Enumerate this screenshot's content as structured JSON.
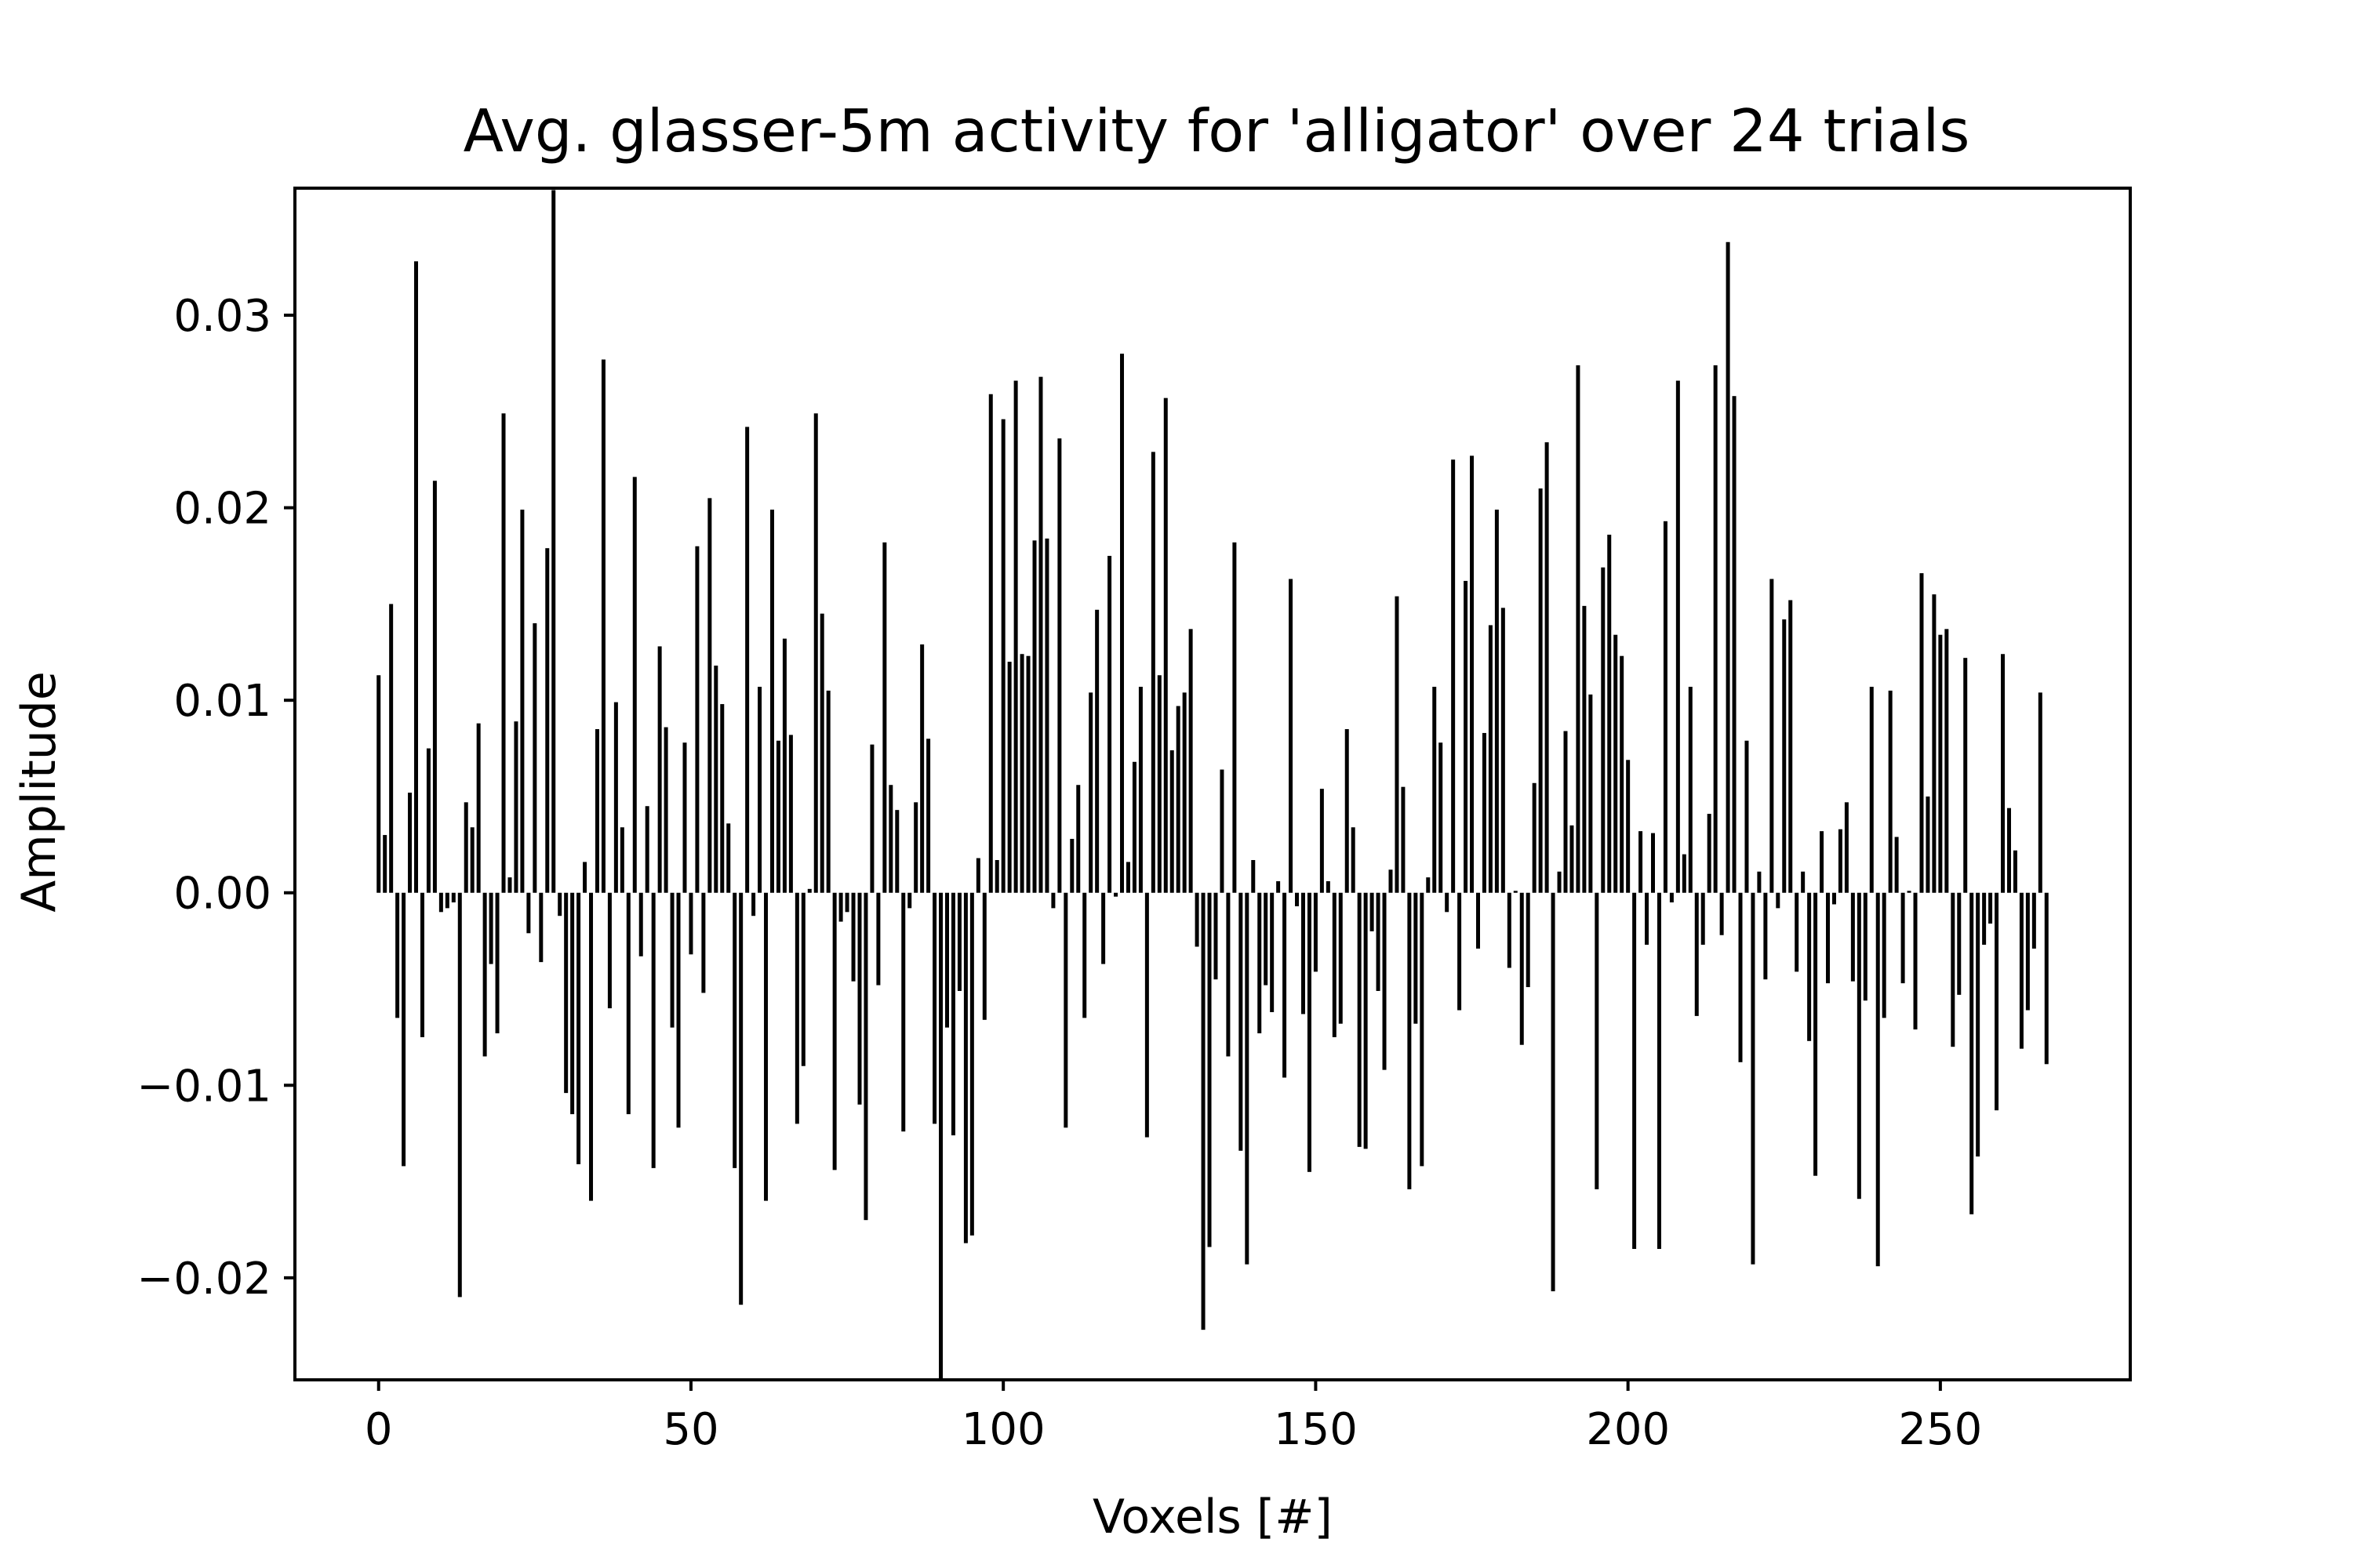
{
  "chart_data": {
    "type": "bar",
    "title": "Avg. glasser-5m activity for 'alligator' over 24 trials",
    "xlabel": "Voxels [#]",
    "ylabel": "Amplitude",
    "xlim": [
      -13.4,
      280.4
    ],
    "ylim": [
      -0.0253,
      0.0366
    ],
    "xticks": [
      0,
      50,
      100,
      150,
      200,
      250
    ],
    "xtick_labels": [
      "0",
      "50",
      "100",
      "150",
      "200",
      "250"
    ],
    "yticks": [
      -0.02,
      -0.01,
      0.0,
      0.01,
      0.02,
      0.03
    ],
    "ytick_labels": [
      "−0.02",
      "−0.01",
      "0.00",
      "0.01",
      "0.02",
      "0.03"
    ],
    "grid": false,
    "bar_color": "#000000",
    "x": [
      0,
      1,
      2,
      3,
      4,
      5,
      6,
      7,
      8,
      9,
      10,
      11,
      12,
      13,
      14,
      15,
      16,
      17,
      18,
      19,
      20,
      21,
      22,
      23,
      24,
      25,
      26,
      27,
      28,
      29,
      30,
      31,
      32,
      33,
      34,
      35,
      36,
      37,
      38,
      39,
      40,
      41,
      42,
      43,
      44,
      45,
      46,
      47,
      48,
      49,
      50,
      51,
      52,
      53,
      54,
      55,
      56,
      57,
      58,
      59,
      60,
      61,
      62,
      63,
      64,
      65,
      66,
      67,
      68,
      69,
      70,
      71,
      72,
      73,
      74,
      75,
      76,
      77,
      78,
      79,
      80,
      81,
      82,
      83,
      84,
      85,
      86,
      87,
      88,
      89,
      90,
      91,
      92,
      93,
      94,
      95,
      96,
      97,
      98,
      99,
      100,
      101,
      102,
      103,
      104,
      105,
      106,
      107,
      108,
      109,
      110,
      111,
      112,
      113,
      114,
      115,
      116,
      117,
      118,
      119,
      120,
      121,
      122,
      123,
      124,
      125,
      126,
      127,
      128,
      129,
      130,
      131,
      132,
      133,
      134,
      135,
      136,
      137,
      138,
      139,
      140,
      141,
      142,
      143,
      144,
      145,
      146,
      147,
      148,
      149,
      150,
      151,
      152,
      153,
      154,
      155,
      156,
      157,
      158,
      159,
      160,
      161,
      162,
      163,
      164,
      165,
      166,
      167,
      168,
      169,
      170,
      171,
      172,
      173,
      174,
      175,
      176,
      177,
      178,
      179,
      180,
      181,
      182,
      183,
      184,
      185,
      186,
      187,
      188,
      189,
      190,
      191,
      192,
      193,
      194,
      195,
      196,
      197,
      198,
      199,
      200,
      201,
      202,
      203,
      204,
      205,
      206,
      207,
      208,
      209,
      210,
      211,
      212,
      213,
      214,
      215,
      216,
      217,
      218,
      219,
      220,
      221,
      222,
      223,
      224,
      225,
      226,
      227,
      228,
      229,
      230,
      231,
      232,
      233,
      234,
      235,
      236,
      237,
      238,
      239,
      240,
      241,
      242,
      243,
      244,
      245,
      246,
      247,
      248,
      249,
      250,
      251,
      252,
      253,
      254,
      255,
      256,
      257,
      258,
      259,
      260,
      261,
      262,
      263,
      264,
      265,
      266,
      267
    ],
    "values": [
      0.0113,
      0.003,
      0.015,
      -0.0065,
      -0.0142,
      0.0052,
      0.0328,
      -0.0075,
      0.0075,
      0.0214,
      -0.001,
      -0.0008,
      -0.0005,
      -0.021,
      0.0047,
      0.0034,
      0.0088,
      -0.0085,
      -0.0037,
      -0.0073,
      0.0249,
      0.0008,
      0.0089,
      0.0199,
      -0.0021,
      0.014,
      -0.0036,
      0.0179,
      0.0365,
      -0.0012,
      -0.0104,
      -0.0115,
      -0.0141,
      0.0016,
      -0.016,
      0.0085,
      0.0277,
      -0.006,
      0.0099,
      0.0034,
      -0.0115,
      0.0216,
      -0.0033,
      0.0045,
      -0.0143,
      0.0128,
      0.0086,
      -0.007,
      -0.0122,
      0.0078,
      -0.0032,
      0.018,
      -0.0052,
      0.0205,
      0.0118,
      0.0098,
      0.0036,
      -0.0143,
      -0.0214,
      0.0242,
      -0.0012,
      0.0107,
      -0.016,
      0.0199,
      0.0079,
      0.0132,
      0.0082,
      -0.012,
      -0.009,
      0.0002,
      0.0249,
      0.0145,
      0.0105,
      -0.0144,
      -0.0015,
      -0.001,
      -0.0046,
      -0.011,
      -0.017,
      0.0077,
      -0.0048,
      0.0182,
      0.0056,
      0.0043,
      -0.0124,
      -0.0008,
      0.0047,
      0.0129,
      0.008,
      -0.012,
      -0.0253,
      -0.007,
      -0.0126,
      -0.0051,
      -0.0182,
      -0.0178,
      0.0018,
      -0.0066,
      0.0259,
      0.0017,
      0.0246,
      0.012,
      0.0266,
      0.0124,
      0.0123,
      0.0183,
      0.0268,
      0.0184,
      -0.0008,
      0.0236,
      -0.0122,
      0.0028,
      0.0056,
      -0.0065,
      0.0104,
      0.0147,
      -0.0037,
      0.0175,
      -0.0002,
      0.028,
      0.0016,
      0.0068,
      0.0107,
      -0.0127,
      0.0229,
      0.0113,
      0.0257,
      0.0074,
      0.0097,
      0.0104,
      0.0137,
      -0.0028,
      -0.0227,
      -0.0184,
      -0.0045,
      0.0064,
      -0.0085,
      0.0182,
      -0.0134,
      -0.0193,
      0.0017,
      -0.0073,
      -0.0048,
      -0.0062,
      0.0006,
      -0.0096,
      0.0163,
      -0.0007,
      -0.0063,
      -0.0145,
      -0.0041,
      0.0054,
      0.0006,
      -0.0075,
      -0.0068,
      0.0085,
      0.0034,
      -0.0132,
      -0.0133,
      -0.002,
      -0.0051,
      -0.0092,
      0.0012,
      0.0154,
      0.0055,
      -0.0154,
      -0.0068,
      -0.0142,
      0.0008,
      0.0107,
      0.0078,
      -0.001,
      0.0225,
      -0.0061,
      0.0162,
      0.0227,
      -0.0029,
      0.0083,
      0.0139,
      0.0199,
      0.0148,
      -0.0039,
      0.0001,
      -0.0079,
      -0.0049,
      0.0057,
      0.021,
      0.0234,
      -0.0207,
      0.0011,
      0.0084,
      0.0035,
      0.0274,
      0.0149,
      0.0103,
      -0.0154,
      0.0169,
      0.0186,
      0.0134,
      0.0123,
      0.0069,
      -0.0185,
      0.0032,
      -0.0027,
      0.0031,
      -0.0185,
      0.0193,
      -0.0005,
      0.0266,
      0.002,
      0.0107,
      -0.0064,
      -0.0027,
      0.0041,
      0.0274,
      -0.0022,
      0.0338,
      0.0258,
      -0.0088,
      0.0079,
      -0.0193,
      0.0011,
      -0.0045,
      0.0163,
      -0.0008,
      0.0142,
      0.0152,
      -0.0041,
      0.0011,
      -0.0077,
      -0.0147,
      0.0032,
      -0.0047,
      -0.0006,
      0.0033,
      0.0047,
      -0.0046,
      -0.0159,
      -0.0056,
      0.0107,
      -0.0194,
      -0.0065,
      0.0105,
      0.0029,
      -0.0047,
      0.0001,
      -0.0071,
      0.0166,
      0.005,
      0.0155,
      0.0134,
      0.0137,
      -0.008,
      -0.0053,
      0.0122,
      -0.0167,
      -0.0137,
      -0.0027,
      -0.0016,
      -0.0113,
      0.0124,
      0.0044,
      0.0022,
      -0.0081,
      -0.0061,
      -0.0029,
      0.0104,
      -0.0089
    ]
  }
}
